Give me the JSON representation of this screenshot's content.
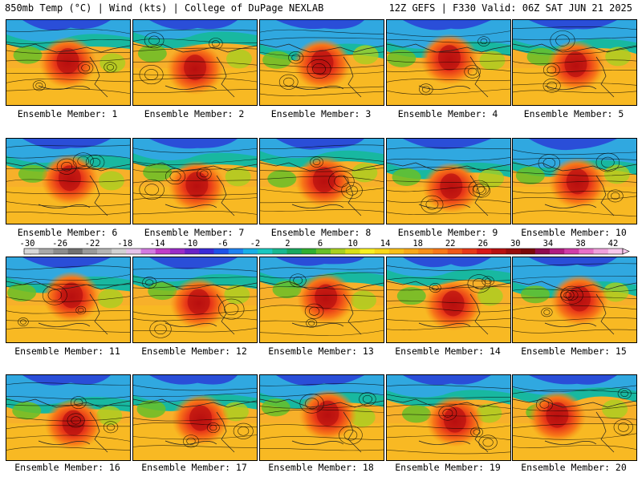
{
  "header": {
    "left_title": "850mb Temp (°C) | Wind (kts) | College of DuPage NEXLAB",
    "right_title": "12Z GEFS | F330 Valid: 06Z SAT JUN 21 2025"
  },
  "panels": [
    {
      "label": "Ensemble Member: 1"
    },
    {
      "label": "Ensemble Member: 2"
    },
    {
      "label": "Ensemble Member: 3"
    },
    {
      "label": "Ensemble Member: 4"
    },
    {
      "label": "Ensemble Member: 5"
    },
    {
      "label": "Ensemble Member: 6"
    },
    {
      "label": "Ensemble Member: 7"
    },
    {
      "label": "Ensemble Member: 8"
    },
    {
      "label": "Ensemble Member: 9"
    },
    {
      "label": "Ensemble Member: 10"
    },
    {
      "label": "Ensemble Member: 11"
    },
    {
      "label": "Ensemble Member: 12"
    },
    {
      "label": "Ensemble Member: 13"
    },
    {
      "label": "Ensemble Member: 14"
    },
    {
      "label": "Ensemble Member: 15"
    },
    {
      "label": "Ensemble Member: 16"
    },
    {
      "label": "Ensemble Member: 17"
    },
    {
      "label": "Ensemble Member: 18"
    },
    {
      "label": "Ensemble Member: 19"
    },
    {
      "label": "Ensemble Member: 20"
    }
  ],
  "colorbar": {
    "tick_labels": [
      "-30",
      "-26",
      "-22",
      "-18",
      "-14",
      "-10",
      "-6",
      "-2",
      "2",
      "6",
      "10",
      "14",
      "18",
      "22",
      "26",
      "30",
      "34",
      "38",
      "42"
    ],
    "colors": [
      "#d8d8d8",
      "#a8a8a8",
      "#8c8c8c",
      "#707070",
      "#9a9a9a",
      "#b4b4b4",
      "#d2d2d2",
      "#e6c3ea",
      "#d27ae0",
      "#c03cc8",
      "#9a2cc8",
      "#6a22c8",
      "#3a2ad8",
      "#1e52e8",
      "#1e82f0",
      "#18b0e8",
      "#18c8c0",
      "#18b890",
      "#18a860",
      "#30b030",
      "#68c028",
      "#a8d020",
      "#d8e018",
      "#f8f020",
      "#f8d818",
      "#f8c018",
      "#f8a818",
      "#f89018",
      "#f87818",
      "#f05818",
      "#e83818",
      "#d81818",
      "#b81010",
      "#980c0c",
      "#7c0808",
      "#900c50",
      "#b01c80",
      "#d03ca8",
      "#e870c8",
      "#f0a0dc",
      "#f8c8ec"
    ]
  }
}
